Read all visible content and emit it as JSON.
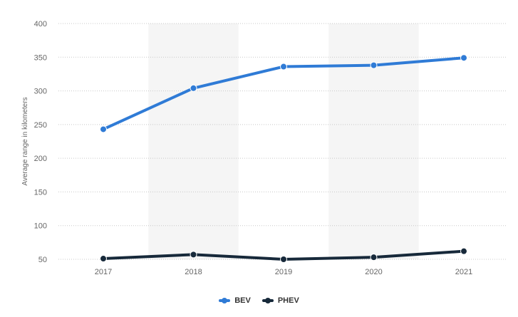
{
  "chart_data": {
    "type": "line",
    "x": [
      "2017",
      "2018",
      "2019",
      "2020",
      "2021"
    ],
    "ylabel": "Average range in kilometers",
    "xlabel": "",
    "ylim": [
      50,
      400
    ],
    "yticks": [
      50,
      100,
      150,
      200,
      250,
      300,
      350,
      400
    ],
    "grid": true,
    "legend_position": "bottom-center",
    "series": [
      {
        "name": "BEV",
        "color": "#2f7bd6",
        "values": [
          243,
          304,
          336,
          338,
          349
        ]
      },
      {
        "name": "PHEV",
        "color": "#17293a",
        "values": [
          51,
          57,
          50,
          53,
          62
        ]
      }
    ]
  }
}
